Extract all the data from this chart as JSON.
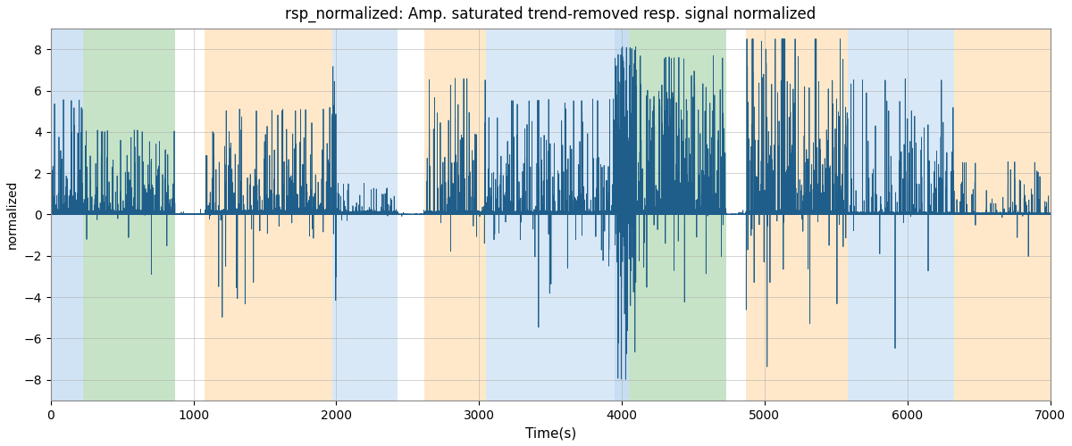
{
  "title": "rsp_normalized: Amp. saturated trend-removed resp. signal normalized",
  "xlabel": "Time(s)",
  "ylabel": "normalized",
  "xlim": [
    0,
    7000
  ],
  "ylim": [
    -9,
    9
  ],
  "yticks": [
    -8,
    -6,
    -4,
    -2,
    0,
    2,
    4,
    6,
    8
  ],
  "xticks": [
    0,
    1000,
    2000,
    3000,
    4000,
    5000,
    6000,
    7000
  ],
  "line_color": "#1f5e8a",
  "background_color": "#ffffff",
  "bands": [
    {
      "xmin": 0,
      "xmax": 230,
      "color": "#aaccee",
      "alpha": 0.55
    },
    {
      "xmin": 230,
      "xmax": 870,
      "color": "#99cc99",
      "alpha": 0.55
    },
    {
      "xmin": 870,
      "xmax": 1080,
      "color": "#ffffff",
      "alpha": 0.0
    },
    {
      "xmin": 1080,
      "xmax": 1970,
      "color": "#ffcc88",
      "alpha": 0.45
    },
    {
      "xmin": 1970,
      "xmax": 2430,
      "color": "#aaccee",
      "alpha": 0.45
    },
    {
      "xmin": 2430,
      "xmax": 2620,
      "color": "#ffffff",
      "alpha": 0.0
    },
    {
      "xmin": 2620,
      "xmax": 3050,
      "color": "#ffcc88",
      "alpha": 0.45
    },
    {
      "xmin": 3050,
      "xmax": 3950,
      "color": "#aaccee",
      "alpha": 0.45
    },
    {
      "xmin": 3950,
      "xmax": 4050,
      "color": "#aaccee",
      "alpha": 0.65
    },
    {
      "xmin": 4050,
      "xmax": 4730,
      "color": "#99cc99",
      "alpha": 0.55
    },
    {
      "xmin": 4730,
      "xmax": 4870,
      "color": "#ffffff",
      "alpha": 0.0
    },
    {
      "xmin": 4870,
      "xmax": 5580,
      "color": "#ffcc88",
      "alpha": 0.45
    },
    {
      "xmin": 5580,
      "xmax": 6330,
      "color": "#aaccee",
      "alpha": 0.45
    },
    {
      "xmin": 6330,
      "xmax": 7000,
      "color": "#ffcc88",
      "alpha": 0.45
    }
  ],
  "segments": [
    {
      "start": 0,
      "end": 230,
      "active": true,
      "base_amp": 0.3,
      "spike_prob": 0.03,
      "spike_max": 5.5,
      "neg_prob": 0.05
    },
    {
      "start": 230,
      "end": 870,
      "active": true,
      "base_amp": 0.25,
      "spike_prob": 0.025,
      "spike_max": 4.0,
      "neg_prob": 0.05
    },
    {
      "start": 870,
      "end": 1080,
      "active": false,
      "base_amp": 0.05,
      "spike_prob": 0.005,
      "spike_max": 0.4,
      "neg_prob": 0.05
    },
    {
      "start": 1080,
      "end": 1970,
      "active": true,
      "base_amp": 0.25,
      "spike_prob": 0.025,
      "spike_max": 5.0,
      "neg_prob": 0.08
    },
    {
      "start": 1970,
      "end": 2000,
      "active": true,
      "base_amp": 0.3,
      "spike_prob": 0.15,
      "spike_max": 8.5,
      "neg_prob": 0.15
    },
    {
      "start": 2000,
      "end": 2430,
      "active": true,
      "base_amp": 0.2,
      "spike_prob": 0.02,
      "spike_max": 1.5,
      "neg_prob": 0.05
    },
    {
      "start": 2430,
      "end": 2620,
      "active": false,
      "base_amp": 0.02,
      "spike_prob": 0.002,
      "spike_max": 0.2,
      "neg_prob": 0.05
    },
    {
      "start": 2620,
      "end": 3050,
      "active": true,
      "base_amp": 0.2,
      "spike_prob": 0.02,
      "spike_max": 6.5,
      "neg_prob": 0.1
    },
    {
      "start": 3050,
      "end": 3950,
      "active": true,
      "base_amp": 0.2,
      "spike_prob": 0.02,
      "spike_max": 5.5,
      "neg_prob": 0.08
    },
    {
      "start": 3950,
      "end": 4100,
      "active": true,
      "base_amp": 0.3,
      "spike_prob": 0.18,
      "spike_max": 8.0,
      "neg_prob": 0.15
    },
    {
      "start": 4100,
      "end": 4730,
      "active": true,
      "base_amp": 0.3,
      "spike_prob": 0.04,
      "spike_max": 7.5,
      "neg_prob": 0.05
    },
    {
      "start": 4730,
      "end": 4870,
      "active": false,
      "base_amp": 0.02,
      "spike_prob": 0.002,
      "spike_max": 0.2,
      "neg_prob": 0.05
    },
    {
      "start": 4870,
      "end": 5580,
      "active": true,
      "base_amp": 0.25,
      "spike_prob": 0.035,
      "spike_max": 8.5,
      "neg_prob": 0.12
    },
    {
      "start": 5580,
      "end": 6330,
      "active": true,
      "base_amp": 0.15,
      "spike_prob": 0.015,
      "spike_max": 6.5,
      "neg_prob": 0.05
    },
    {
      "start": 6330,
      "end": 7000,
      "active": true,
      "base_amp": 0.1,
      "spike_prob": 0.01,
      "spike_max": 2.5,
      "neg_prob": 0.05
    }
  ],
  "n_points": 70000,
  "seed": 12345
}
